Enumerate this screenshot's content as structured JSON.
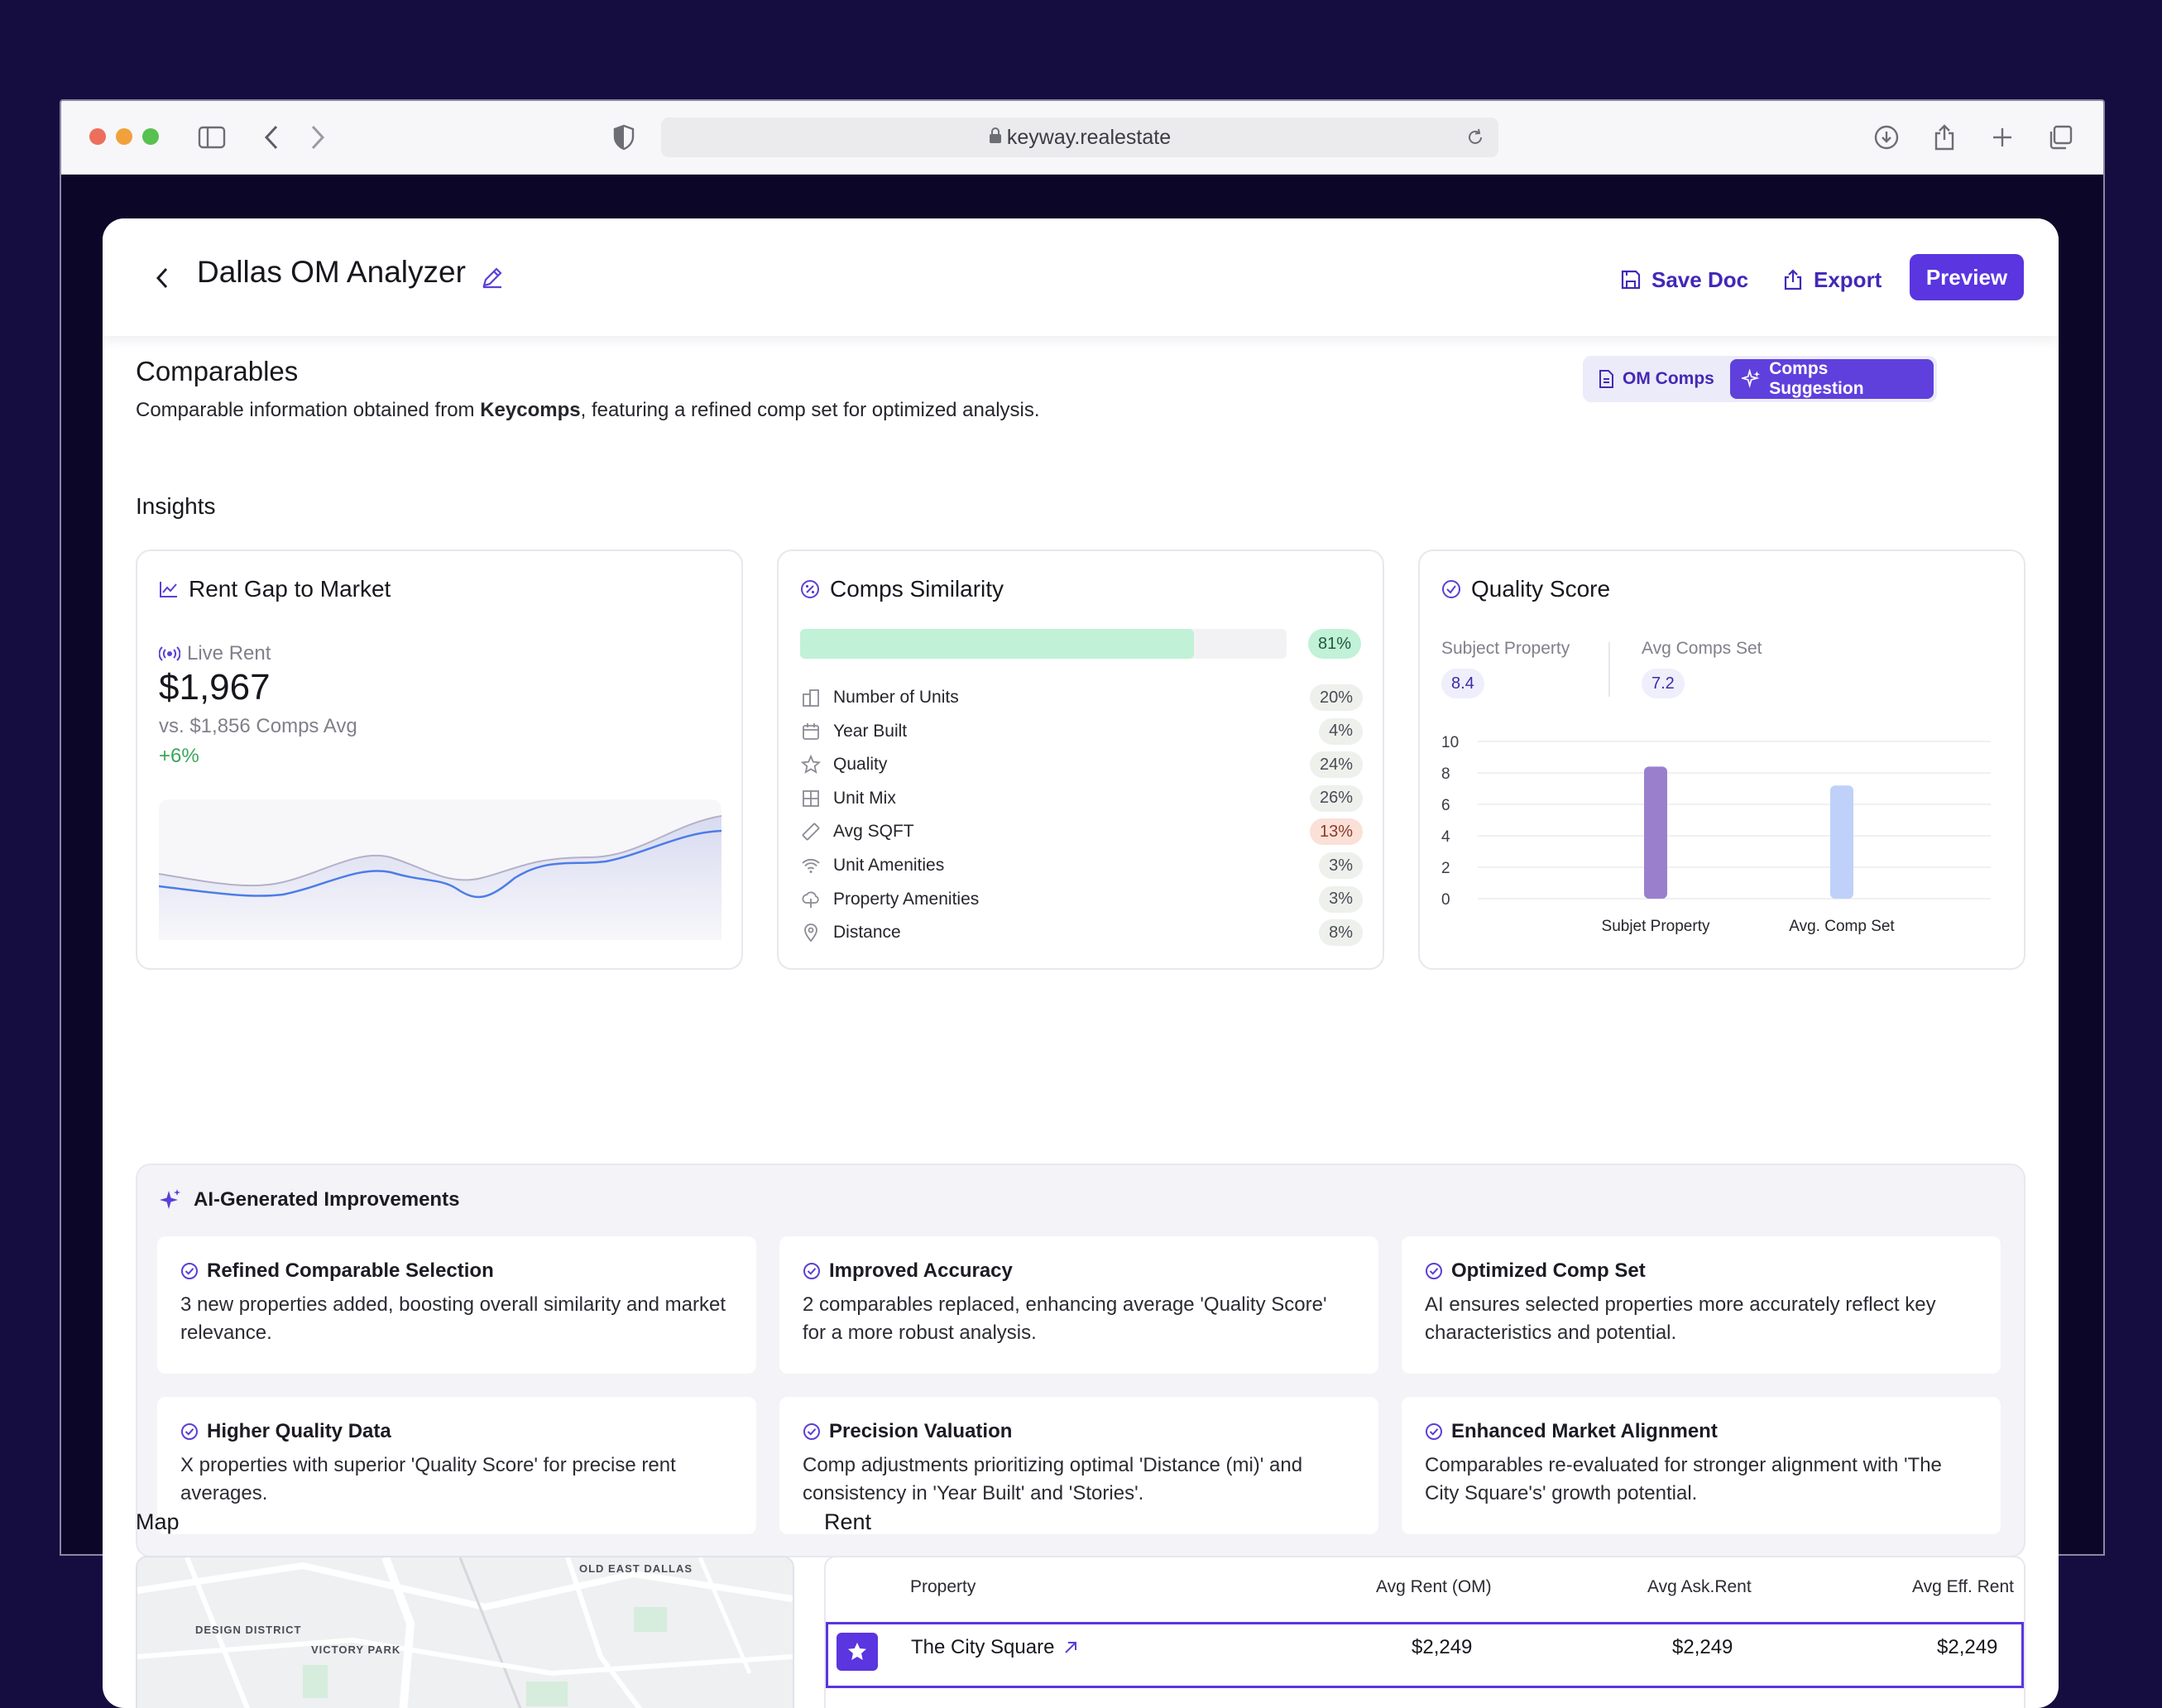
{
  "browser": {
    "url": "keyway.realestate"
  },
  "header": {
    "title": "Dallas OM Analyzer",
    "save_label": "Save Doc",
    "export_label": "Export",
    "preview_label": "Preview"
  },
  "comparables": {
    "title": "Comparables",
    "subtitle_pre": "Comparable information obtained from ",
    "subtitle_bold": "Keycomps",
    "subtitle_post": ", featuring a refined comp set for optimized analysis.",
    "tabs": [
      "OM Comps",
      "Comps Suggestion"
    ],
    "active_tab": "Comps Suggestion"
  },
  "insights": {
    "title": "Insights",
    "rent_gap": {
      "title": "Rent Gap to Market",
      "live_label": "Live Rent",
      "value": "$1,967",
      "comparison": "vs. $1,856 Comps Avg",
      "delta": "+6%"
    },
    "similarity": {
      "title": "Comps Similarity",
      "total": "81%",
      "total_fraction": 0.81,
      "rows": [
        {
          "label": "Number of Units",
          "value": "20%",
          "icon": "building-icon"
        },
        {
          "label": "Year Built",
          "value": "4%",
          "icon": "calendar-icon"
        },
        {
          "label": "Quality",
          "value": "24%",
          "icon": "star-icon"
        },
        {
          "label": "Unit Mix",
          "value": "26%",
          "icon": "grid-icon"
        },
        {
          "label": "Avg SQFT",
          "value": "13%",
          "icon": "ruler-icon"
        },
        {
          "label": "Unit Amenities",
          "value": "3%",
          "icon": "wifi-icon"
        },
        {
          "label": "Property Amenities",
          "value": "3%",
          "icon": "tree-icon"
        },
        {
          "label": "Distance",
          "value": "8%",
          "icon": "pin-icon"
        }
      ]
    },
    "quality": {
      "title": "Quality Score",
      "subject_label": "Subject Property",
      "subject_value": "8.4",
      "comps_label": "Avg Comps Set",
      "comps_value": "7.2"
    }
  },
  "chart_data": {
    "type": "bar",
    "categories": [
      "Subjet Property",
      "Avg. Comp Set"
    ],
    "values": [
      8.4,
      7.2
    ],
    "colors": [
      "#9a80cc",
      "#bfd1f8"
    ],
    "ylim": [
      0,
      10
    ],
    "yticks": [
      "0",
      "2",
      "4",
      "6",
      "8",
      "10"
    ],
    "grid": true
  },
  "ai": {
    "title": "AI-Generated Improvements",
    "cards": [
      {
        "title": "Refined Comparable Selection",
        "text": "3 new properties added, boosting overall similarity and market relevance."
      },
      {
        "title": "Improved Accuracy",
        "text": "2 comparables replaced, enhancing average 'Quality Score' for a more robust analysis."
      },
      {
        "title": "Optimized Comp Set",
        "text": "AI ensures selected properties more accurately reflect key characteristics and potential."
      },
      {
        "title": "Higher Quality Data",
        "text": "X properties with superior 'Quality Score' for precise rent averages."
      },
      {
        "title": "Precision Valuation",
        "text": "Comp adjustments prioritizing optimal 'Distance (mi)' and consistency in 'Year Built' and 'Stories'."
      },
      {
        "title": "Enhanced Market Alignment",
        "text": "Comparables re-evaluated for stronger alignment with 'The City Square's' growth potential."
      }
    ]
  },
  "map": {
    "title": "Map",
    "labels": [
      "OLD EAST DALLAS",
      "DESIGN DISTRICT",
      "VICTORY PARK"
    ]
  },
  "rent": {
    "title": "Rent",
    "columns": [
      "Property",
      "Avg Rent (OM)",
      "Avg Ask.Rent",
      "Avg Eff. Rent"
    ],
    "row": {
      "property": "The City Square",
      "avg_rent_om": "$2,249",
      "avg_ask_rent": "$2,249",
      "avg_eff_rent": "$2,249"
    }
  }
}
